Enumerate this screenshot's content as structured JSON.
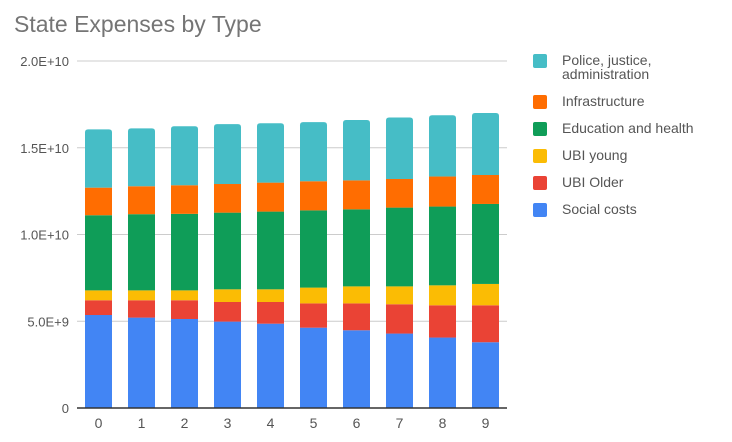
{
  "chart_data": {
    "type": "bar",
    "stacked": true,
    "title": "State Expenses by Type",
    "xlabel": "",
    "ylabel": "",
    "categories": [
      "0",
      "1",
      "2",
      "3",
      "4",
      "5",
      "6",
      "7",
      "8",
      "9"
    ],
    "ylim": [
      0,
      20000000000
    ],
    "yticks": [
      0,
      5000000000,
      10000000000,
      15000000000,
      20000000000
    ],
    "ytick_labels": [
      "0",
      "5.0E+9",
      "1.0E+10",
      "1.5E+10",
      "2.0E+10"
    ],
    "grid": true,
    "legend_position": "right",
    "series": [
      {
        "name": "Social costs",
        "color": "#4285f4",
        "values": [
          5360000000,
          5210000000,
          5130000000,
          4980000000,
          4860000000,
          4630000000,
          4480000000,
          4290000000,
          4060000000,
          3790000000
        ]
      },
      {
        "name": "UBI Older",
        "color": "#ea4335",
        "values": [
          850000000,
          1000000000,
          1080000000,
          1130000000,
          1250000000,
          1400000000,
          1550000000,
          1690000000,
          1860000000,
          2130000000
        ]
      },
      {
        "name": "UBI young",
        "color": "#fbbc04",
        "values": [
          570000000,
          570000000,
          570000000,
          730000000,
          730000000,
          910000000,
          980000000,
          1030000000,
          1150000000,
          1230000000
        ]
      },
      {
        "name": "Education and health",
        "color": "#0f9d58",
        "values": [
          4330000000,
          4390000000,
          4410000000,
          4420000000,
          4480000000,
          4450000000,
          4440000000,
          4540000000,
          4540000000,
          4610000000
        ]
      },
      {
        "name": "Infrastructure",
        "color": "#ff6d01",
        "values": [
          1590000000,
          1610000000,
          1650000000,
          1650000000,
          1670000000,
          1680000000,
          1670000000,
          1650000000,
          1730000000,
          1670000000
        ]
      },
      {
        "name": "Police, justice, administration",
        "color": "#46bdc6",
        "values": [
          3360000000,
          3340000000,
          3400000000,
          3450000000,
          3420000000,
          3410000000,
          3480000000,
          3540000000,
          3530000000,
          3570000000
        ]
      }
    ],
    "legend_order": [
      "Police, justice, administration",
      "Infrastructure",
      "Education and health",
      "UBI young",
      "UBI Older",
      "Social costs"
    ]
  }
}
